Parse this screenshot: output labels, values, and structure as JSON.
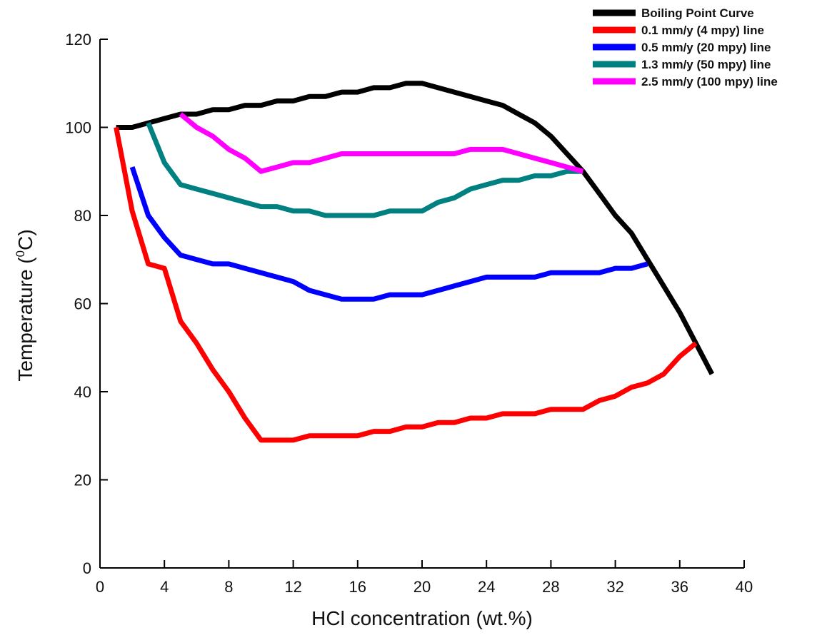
{
  "chart_data": {
    "type": "line",
    "xlabel": "HCl concentration (wt.%)",
    "ylabel": {
      "before": "Temperature (",
      "superscript": "0",
      "after": "C)"
    },
    "xlim": [
      0,
      40
    ],
    "ylim": [
      0,
      120
    ],
    "x_ticks": [
      "0",
      "4",
      "8",
      "12",
      "16",
      "20",
      "24",
      "28",
      "32",
      "36",
      "40"
    ],
    "y_ticks": [
      "0",
      "20",
      "40",
      "60",
      "80",
      "100",
      "120"
    ],
    "grid": false,
    "legend_position": "top-right",
    "series": [
      {
        "name": "Boiling Point Curve",
        "color": "#000000",
        "points": [
          [
            1,
            100
          ],
          [
            2,
            100
          ],
          [
            4,
            102
          ],
          [
            5,
            103
          ],
          [
            6,
            103
          ],
          [
            7,
            104
          ],
          [
            8,
            104
          ],
          [
            9,
            105
          ],
          [
            10,
            105
          ],
          [
            11,
            106
          ],
          [
            12,
            106
          ],
          [
            13,
            107
          ],
          [
            14,
            107
          ],
          [
            15,
            108
          ],
          [
            16,
            108
          ],
          [
            17,
            109
          ],
          [
            18,
            109
          ],
          [
            19,
            110
          ],
          [
            20,
            110
          ],
          [
            22,
            108
          ],
          [
            24,
            106
          ],
          [
            25,
            105
          ],
          [
            26,
            103
          ],
          [
            27,
            101
          ],
          [
            28,
            98
          ],
          [
            29,
            94
          ],
          [
            30,
            90
          ],
          [
            31,
            85
          ],
          [
            32,
            80
          ],
          [
            33,
            76
          ],
          [
            34,
            70
          ],
          [
            35,
            64
          ],
          [
            36,
            58
          ],
          [
            37,
            51
          ],
          [
            38,
            44
          ]
        ]
      },
      {
        "name": "0.1 mm/y (4 mpy) line",
        "color": "#ff0000",
        "points": [
          [
            1,
            100
          ],
          [
            2,
            81
          ],
          [
            3,
            69
          ],
          [
            4,
            68
          ],
          [
            5,
            56
          ],
          [
            6,
            51
          ],
          [
            7,
            45
          ],
          [
            8,
            40
          ],
          [
            9,
            34
          ],
          [
            10,
            29
          ],
          [
            11,
            29
          ],
          [
            12,
            29
          ],
          [
            13,
            30
          ],
          [
            14,
            30
          ],
          [
            15,
            30
          ],
          [
            16,
            30
          ],
          [
            17,
            31
          ],
          [
            18,
            31
          ],
          [
            19,
            32
          ],
          [
            20,
            32
          ],
          [
            21,
            33
          ],
          [
            22,
            33
          ],
          [
            23,
            34
          ],
          [
            24,
            34
          ],
          [
            25,
            35
          ],
          [
            26,
            35
          ],
          [
            27,
            35
          ],
          [
            28,
            36
          ],
          [
            29,
            36
          ],
          [
            30,
            36
          ],
          [
            31,
            38
          ],
          [
            32,
            39
          ],
          [
            33,
            41
          ],
          [
            34,
            42
          ],
          [
            35,
            44
          ],
          [
            36,
            48
          ],
          [
            37,
            51
          ]
        ]
      },
      {
        "name": "0.5 mm/y (20 mpy) line",
        "color": "#0000ff",
        "points": [
          [
            2,
            91
          ],
          [
            3,
            80
          ],
          [
            4,
            75
          ],
          [
            5,
            71
          ],
          [
            6,
            70
          ],
          [
            7,
            69
          ],
          [
            8,
            69
          ],
          [
            9,
            68
          ],
          [
            10,
            67
          ],
          [
            11,
            66
          ],
          [
            12,
            65
          ],
          [
            13,
            63
          ],
          [
            14,
            62
          ],
          [
            15,
            61
          ],
          [
            16,
            61
          ],
          [
            17,
            61
          ],
          [
            18,
            62
          ],
          [
            19,
            62
          ],
          [
            20,
            62
          ],
          [
            21,
            63
          ],
          [
            22,
            64
          ],
          [
            23,
            65
          ],
          [
            24,
            66
          ],
          [
            25,
            66
          ],
          [
            26,
            66
          ],
          [
            27,
            66
          ],
          [
            28,
            67
          ],
          [
            29,
            67
          ],
          [
            30,
            67
          ],
          [
            31,
            67
          ],
          [
            32,
            68
          ],
          [
            33,
            68
          ],
          [
            34,
            69
          ]
        ]
      },
      {
        "name": "1.3 mm/y (50 mpy) line",
        "color": "#008080",
        "points": [
          [
            3,
            101
          ],
          [
            4,
            92
          ],
          [
            5,
            87
          ],
          [
            6,
            86
          ],
          [
            7,
            85
          ],
          [
            8,
            84
          ],
          [
            9,
            83
          ],
          [
            10,
            82
          ],
          [
            11,
            82
          ],
          [
            12,
            81
          ],
          [
            13,
            81
          ],
          [
            14,
            80
          ],
          [
            15,
            80
          ],
          [
            16,
            80
          ],
          [
            17,
            80
          ],
          [
            18,
            81
          ],
          [
            19,
            81
          ],
          [
            20,
            81
          ],
          [
            21,
            83
          ],
          [
            22,
            84
          ],
          [
            23,
            86
          ],
          [
            24,
            87
          ],
          [
            25,
            88
          ],
          [
            26,
            88
          ],
          [
            27,
            89
          ],
          [
            28,
            89
          ],
          [
            29,
            90
          ],
          [
            30,
            90
          ]
        ]
      },
      {
        "name": "2.5 mm/y (100 mpy) line",
        "color": "#ff00ff",
        "points": [
          [
            5,
            103
          ],
          [
            6,
            100
          ],
          [
            7,
            98
          ],
          [
            8,
            95
          ],
          [
            9,
            93
          ],
          [
            10,
            90
          ],
          [
            11,
            91
          ],
          [
            12,
            92
          ],
          [
            13,
            92
          ],
          [
            14,
            93
          ],
          [
            15,
            94
          ],
          [
            16,
            94
          ],
          [
            17,
            94
          ],
          [
            18,
            94
          ],
          [
            19,
            94
          ],
          [
            20,
            94
          ],
          [
            21,
            94
          ],
          [
            22,
            94
          ],
          [
            23,
            95
          ],
          [
            24,
            95
          ],
          [
            25,
            95
          ],
          [
            26,
            94
          ],
          [
            27,
            93
          ],
          [
            28,
            92
          ],
          [
            29,
            91
          ],
          [
            30,
            90
          ]
        ]
      }
    ]
  }
}
